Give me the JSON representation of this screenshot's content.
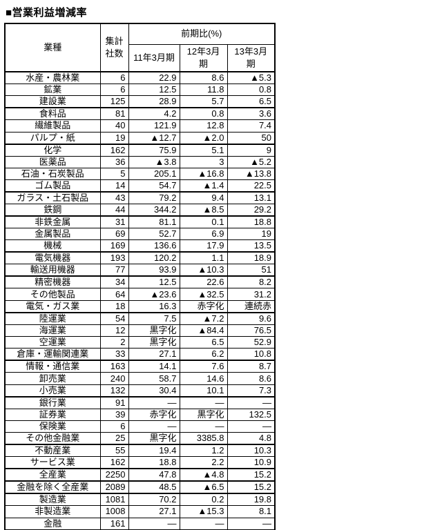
{
  "title": "■営業利益増減率",
  "table": {
    "header": {
      "industry": "業種",
      "count": "集計\n社数",
      "period_group": "前期比(%)",
      "periods": [
        "11年3月期",
        "12年3月\n期",
        "13年3月\n期"
      ]
    },
    "rows": [
      {
        "name": "水産・農林業",
        "count": "6",
        "values": [
          "22.9",
          "8.6",
          "▲5.3"
        ],
        "group_end": false
      },
      {
        "name": "鉱業",
        "count": "6",
        "values": [
          "12.5",
          "11.8",
          "0.8"
        ],
        "group_end": false
      },
      {
        "name": "建設業",
        "count": "125",
        "values": [
          "28.9",
          "5.7",
          "6.5"
        ],
        "group_end": true
      },
      {
        "name": "食料品",
        "count": "81",
        "values": [
          "4.2",
          "0.8",
          "3.6"
        ],
        "group_end": false
      },
      {
        "name": "繊維製品",
        "count": "40",
        "values": [
          "121.9",
          "12.8",
          "7.4"
        ],
        "group_end": false
      },
      {
        "name": "パルプ・紙",
        "count": "19",
        "values": [
          "▲12.7",
          "▲2.0",
          "50"
        ],
        "group_end": true
      },
      {
        "name": "化学",
        "count": "162",
        "values": [
          "75.9",
          "5.1",
          "9"
        ],
        "group_end": false
      },
      {
        "name": "医薬品",
        "count": "36",
        "values": [
          "▲3.8",
          "3",
          "▲5.2"
        ],
        "group_end": false
      },
      {
        "name": "石油・石炭製品",
        "count": "5",
        "values": [
          "205.1",
          "▲16.8",
          "▲13.8"
        ],
        "group_end": false
      },
      {
        "name": "ゴム製品",
        "count": "14",
        "values": [
          "54.7",
          "▲1.4",
          "22.5"
        ],
        "group_end": true
      },
      {
        "name": "ガラス・土石製品",
        "count": "43",
        "values": [
          "79.2",
          "9.4",
          "13.1"
        ],
        "group_end": false
      },
      {
        "name": "鉄鋼",
        "count": "44",
        "values": [
          "344.2",
          "▲8.5",
          "29.2"
        ],
        "group_end": true
      },
      {
        "name": "非鉄金属",
        "count": "31",
        "values": [
          "81.1",
          "0.1",
          "18.8"
        ],
        "group_end": false
      },
      {
        "name": "金属製品",
        "count": "69",
        "values": [
          "52.7",
          "6.9",
          "19"
        ],
        "group_end": false
      },
      {
        "name": "機械",
        "count": "169",
        "values": [
          "136.6",
          "17.9",
          "13.5"
        ],
        "group_end": true
      },
      {
        "name": "電気機器",
        "count": "193",
        "values": [
          "120.2",
          "1.1",
          "18.9"
        ],
        "group_end": false
      },
      {
        "name": "輸送用機器",
        "count": "77",
        "values": [
          "93.9",
          "▲10.3",
          "51"
        ],
        "group_end": true
      },
      {
        "name": "精密機器",
        "count": "34",
        "values": [
          "12.5",
          "22.6",
          "8.2"
        ],
        "group_end": false
      },
      {
        "name": "その他製品",
        "count": "64",
        "values": [
          "▲23.6",
          "▲32.5",
          "31.2"
        ],
        "group_end": false
      },
      {
        "name": "電気・ガス業",
        "count": "18",
        "values": [
          "16.3",
          "赤字化",
          "連続赤"
        ],
        "group_end": true
      },
      {
        "name": "陸運業",
        "count": "54",
        "values": [
          "7.5",
          "▲7.2",
          "9.6"
        ],
        "group_end": false
      },
      {
        "name": "海運業",
        "count": "12",
        "values": [
          "黒字化",
          "▲84.4",
          "76.5"
        ],
        "group_end": false
      },
      {
        "name": "空運業",
        "count": "2",
        "values": [
          "黒字化",
          "6.5",
          "52.9"
        ],
        "group_end": false
      },
      {
        "name": "倉庫・運輸関連業",
        "count": "33",
        "values": [
          "27.1",
          "6.2",
          "10.8"
        ],
        "group_end": true
      },
      {
        "name": "情報・通信業",
        "count": "163",
        "values": [
          "14.1",
          "7.6",
          "8.7"
        ],
        "group_end": false
      },
      {
        "name": "卸売業",
        "count": "240",
        "values": [
          "58.7",
          "14.6",
          "8.6"
        ],
        "group_end": false
      },
      {
        "name": "小売業",
        "count": "132",
        "values": [
          "30.4",
          "10.1",
          "7.3"
        ],
        "group_end": true
      },
      {
        "name": "銀行業",
        "count": "91",
        "values": [
          "―",
          "―",
          "―"
        ],
        "group_end": false
      },
      {
        "name": "証券業",
        "count": "39",
        "values": [
          "赤字化",
          "黒字化",
          "132.5"
        ],
        "group_end": false
      },
      {
        "name": "保険業",
        "count": "6",
        "values": [
          "―",
          "―",
          "―"
        ],
        "group_end": false
      },
      {
        "name": "その他金融業",
        "count": "25",
        "values": [
          "黒字化",
          "3385.8",
          "4.8"
        ],
        "group_end": true
      },
      {
        "name": "不動産業",
        "count": "55",
        "values": [
          "19.4",
          "1.2",
          "10.3"
        ],
        "group_end": false
      },
      {
        "name": "サービス業",
        "count": "162",
        "values": [
          "18.8",
          "2.2",
          "10.9"
        ],
        "group_end": true
      },
      {
        "name": "全産業",
        "count": "2250",
        "values": [
          "47.8",
          "▲4.8",
          "15.2"
        ],
        "group_end": true
      },
      {
        "name": "金融を除く全産業",
        "count": "2089",
        "values": [
          "48.5",
          "▲6.5",
          "15.2"
        ],
        "group_end": true
      },
      {
        "name": "製造業",
        "count": "1081",
        "values": [
          "70.2",
          "0.2",
          "19.8"
        ],
        "group_end": false
      },
      {
        "name": "非製造業",
        "count": "1008",
        "values": [
          "27.1",
          "▲15.3",
          "8.1"
        ],
        "group_end": false
      },
      {
        "name": "金融",
        "count": "161",
        "values": [
          "―",
          "―",
          "―"
        ],
        "group_end": false
      }
    ]
  }
}
